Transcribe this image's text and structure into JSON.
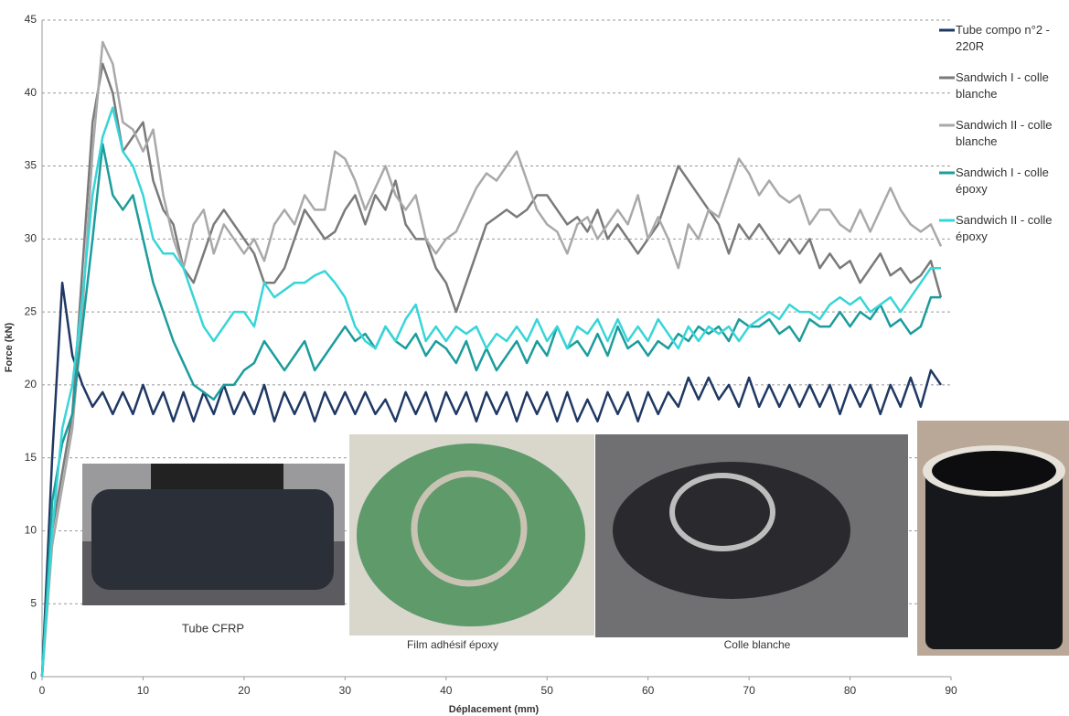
{
  "chart_data": {
    "type": "line",
    "xlabel": "Déplacement (mm)",
    "ylabel": "Force (kN)",
    "xlim": [
      0,
      90
    ],
    "xticks": [
      0,
      10,
      20,
      30,
      40,
      50,
      60,
      70,
      80,
      90
    ],
    "ylim": [
      0,
      45
    ],
    "yticks": [
      0,
      5,
      10,
      15,
      20,
      25,
      30,
      35,
      40,
      45
    ],
    "grid": true,
    "legend": "right",
    "x": [
      0,
      1,
      2,
      3,
      4,
      5,
      6,
      7,
      8,
      9,
      10,
      11,
      12,
      13,
      14,
      15,
      16,
      17,
      18,
      19,
      20,
      21,
      22,
      23,
      24,
      25,
      26,
      27,
      28,
      29,
      30,
      31,
      32,
      33,
      34,
      35,
      36,
      37,
      38,
      39,
      40,
      41,
      42,
      43,
      44,
      45,
      46,
      47,
      48,
      49,
      50,
      51,
      52,
      53,
      54,
      55,
      56,
      57,
      58,
      59,
      60,
      61,
      62,
      63,
      64,
      65,
      66,
      67,
      68,
      69,
      70,
      71,
      72,
      73,
      74,
      75,
      76,
      77,
      78,
      79,
      80,
      81,
      82,
      83,
      84,
      85,
      86,
      87,
      88,
      89
    ],
    "series": [
      {
        "name": "Tube compo n°2 - 220R",
        "color": "#1f3864",
        "values": [
          0,
          15,
          27,
          22,
          20,
          18.5,
          19.5,
          18,
          19.5,
          18,
          20,
          18,
          19.5,
          17.5,
          19.5,
          17.5,
          19.5,
          18,
          20,
          18,
          19.5,
          18,
          20,
          17.5,
          19.5,
          18,
          19.5,
          17.5,
          19.5,
          18,
          19.5,
          18,
          19.5,
          18,
          19,
          17.5,
          19.5,
          18,
          19.5,
          17.5,
          19.5,
          18,
          19.5,
          17.5,
          19.5,
          18,
          19.5,
          17.5,
          19.5,
          18,
          19.5,
          17.5,
          19.5,
          17.5,
          19,
          17.5,
          19.5,
          18,
          19.5,
          17.5,
          19.5,
          18,
          19.5,
          18.5,
          20.5,
          19,
          20.5,
          19,
          20,
          18.5,
          20.5,
          18.5,
          20,
          18.5,
          20,
          18.5,
          20,
          18.5,
          20,
          18,
          20,
          18.5,
          20,
          18,
          20,
          18.5,
          20.5,
          18.5,
          21,
          20
        ]
      },
      {
        "name": "Sandwich I - colle blanche",
        "color": "#7a7a7a",
        "values": [
          0,
          10,
          14,
          18,
          28,
          38,
          42,
          40,
          36,
          37,
          38,
          34,
          32,
          31,
          28,
          27,
          29,
          31,
          32,
          31,
          30,
          29,
          27,
          27,
          28,
          30,
          32,
          31,
          30,
          30.5,
          32,
          33,
          31,
          33,
          32,
          34,
          31,
          30,
          30,
          28,
          27,
          25,
          27,
          29,
          31,
          31.5,
          32,
          31.5,
          32,
          33,
          33,
          32,
          31,
          31.5,
          30.5,
          32,
          30,
          31,
          30,
          29,
          30,
          31,
          33,
          35,
          34,
          33,
          32,
          31,
          29,
          31,
          30,
          31,
          30,
          29,
          30,
          29,
          30,
          28,
          29,
          28,
          28.5,
          27,
          28,
          29,
          27.5,
          28,
          27,
          27.5,
          28.5,
          26
        ]
      },
      {
        "name": "Sandwich II - colle blanche",
        "color": "#a9a9a9",
        "values": [
          0,
          9,
          13,
          17,
          25,
          36,
          43.5,
          42,
          38,
          37.5,
          36,
          37.5,
          33,
          30,
          28,
          31,
          32,
          29,
          31,
          30,
          29,
          30,
          28.5,
          31,
          32,
          31,
          33,
          32,
          32,
          36,
          35.5,
          34,
          32,
          33.5,
          35,
          33,
          32,
          33,
          30,
          29,
          30,
          30.5,
          32,
          33.5,
          34.5,
          34,
          35,
          36,
          34,
          32,
          31,
          30.5,
          29,
          31,
          31.5,
          30,
          31,
          32,
          31,
          33,
          30,
          31.5,
          30,
          28,
          31,
          30,
          32,
          31.5,
          33.5,
          35.5,
          34.5,
          33,
          34,
          33,
          32.5,
          33,
          31,
          32,
          32,
          31,
          30.5,
          32,
          30.5,
          32,
          33.5,
          32,
          31,
          30.5,
          31,
          29.5
        ]
      },
      {
        "name": "Sandwich I - colle époxy",
        "color": "#1c9c9c",
        "values": [
          0,
          12,
          16,
          18,
          24,
          30,
          36.5,
          33,
          32,
          33,
          30,
          27,
          25,
          23,
          21.5,
          20,
          19.5,
          19,
          20,
          20,
          21,
          21.5,
          23,
          22,
          21,
          22,
          23,
          21,
          22,
          23,
          24,
          23,
          23.5,
          22.5,
          24,
          23,
          22.5,
          23.5,
          22,
          23,
          22.5,
          21.5,
          23,
          21,
          22.5,
          21,
          22,
          23,
          21.5,
          23,
          22,
          24,
          22.5,
          23,
          22,
          23.5,
          22,
          24,
          22.5,
          23,
          22,
          23,
          22.5,
          23.5,
          23,
          24,
          23.5,
          24,
          23,
          24.5,
          24,
          24,
          24.5,
          23.5,
          24,
          23,
          24.5,
          24,
          24,
          25,
          24,
          25,
          24.5,
          25.5,
          24,
          24.5,
          23.5,
          24,
          26,
          26
        ]
      },
      {
        "name": "Sandwich II - colle époxy",
        "color": "#38d5d8",
        "values": [
          0,
          10,
          17,
          20,
          26,
          33,
          37,
          39,
          36,
          35,
          33,
          30,
          29,
          29,
          28,
          26,
          24,
          23,
          24,
          25,
          25,
          24,
          27,
          26,
          26.5,
          27,
          27,
          27.5,
          27.8,
          27,
          26,
          24,
          23,
          22.5,
          24,
          23,
          24.5,
          25.5,
          23,
          24,
          23,
          24,
          23.5,
          24,
          22.5,
          23.5,
          23,
          24,
          23,
          24.5,
          23,
          24,
          22.5,
          24,
          23.5,
          24.5,
          23,
          24.5,
          23,
          24,
          23,
          24.5,
          23.5,
          22.5,
          24,
          23,
          24,
          23.5,
          24,
          23,
          24,
          24.5,
          25,
          24.5,
          25.5,
          25,
          25,
          24.5,
          25.5,
          26,
          25.5,
          26,
          25,
          25.5,
          26,
          25,
          26,
          27,
          28,
          28
        ]
      }
    ],
    "annotations": [
      "Tube CFRP",
      "Film adhésif époxy",
      "Colle blanche"
    ]
  }
}
